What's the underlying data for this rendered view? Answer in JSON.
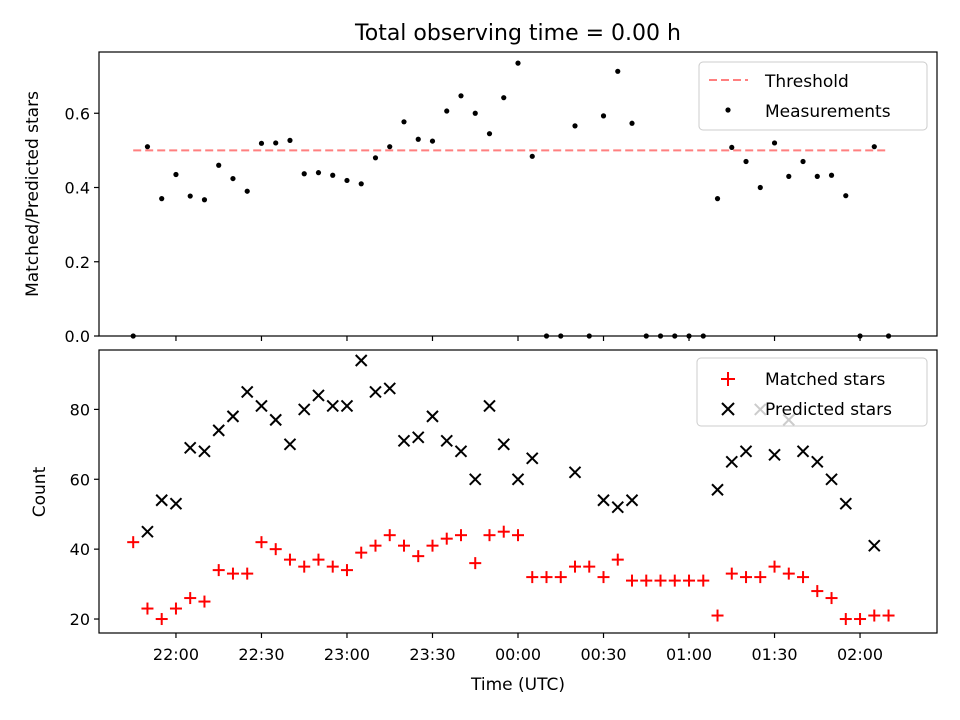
{
  "chart_data": [
    {
      "type": "scatter",
      "title": "Total observing time = 0.00 h",
      "xlabel": "",
      "ylabel": "Matched/Predicted stars",
      "ylim": [
        0,
        0.765
      ],
      "yticks": [
        0.0,
        0.2,
        0.4,
        0.6
      ],
      "ytick_labels": [
        "0.0",
        "0.2",
        "0.4",
        "0.6"
      ],
      "grid": false,
      "legend_position": "top-right",
      "threshold": {
        "name": "Threshold",
        "value": 0.5,
        "color": "#ff7f7f",
        "style": "dashed",
        "x_range": [
          "21:45",
          "02:10"
        ]
      },
      "series": [
        {
          "name": "Measurements",
          "color": "#000000",
          "marker": "dot",
          "points": [
            [
              "21:45",
              0.0
            ],
            [
              "21:50",
              0.51
            ],
            [
              "21:55",
              0.37
            ],
            [
              "22:00",
              0.435
            ],
            [
              "22:05",
              0.377
            ],
            [
              "22:10",
              0.367
            ],
            [
              "22:15",
              0.46
            ],
            [
              "22:20",
              0.424
            ],
            [
              "22:25",
              0.39
            ],
            [
              "22:30",
              0.519
            ],
            [
              "22:35",
              0.52
            ],
            [
              "22:40",
              0.527
            ],
            [
              "22:45",
              0.437
            ],
            [
              "22:50",
              0.44
            ],
            [
              "22:55",
              0.433
            ],
            [
              "23:00",
              0.419
            ],
            [
              "23:05",
              0.41
            ],
            [
              "23:10",
              0.48
            ],
            [
              "23:15",
              0.51
            ],
            [
              "23:20",
              0.577
            ],
            [
              "23:25",
              0.53
            ],
            [
              "23:30",
              0.525
            ],
            [
              "23:35",
              0.606
            ],
            [
              "23:40",
              0.647
            ],
            [
              "23:45",
              0.6
            ],
            [
              "23:50",
              0.545
            ],
            [
              "23:55",
              0.642
            ],
            [
              "00:00",
              0.735
            ],
            [
              "00:05",
              0.484
            ],
            [
              "00:10",
              0.0
            ],
            [
              "00:15",
              0.0
            ],
            [
              "00:20",
              0.566
            ],
            [
              "00:25",
              0.0
            ],
            [
              "00:30",
              0.593
            ],
            [
              "00:35",
              0.713
            ],
            [
              "00:40",
              0.573
            ],
            [
              "00:45",
              0.0
            ],
            [
              "00:50",
              0.0
            ],
            [
              "00:55",
              0.0
            ],
            [
              "01:00",
              0.0
            ],
            [
              "01:05",
              0.0
            ],
            [
              "01:10",
              0.37
            ],
            [
              "01:15",
              0.508
            ],
            [
              "01:20",
              0.47
            ],
            [
              "01:25",
              0.4
            ],
            [
              "01:30",
              0.52
            ],
            [
              "01:35",
              0.43
            ],
            [
              "01:40",
              0.47
            ],
            [
              "01:45",
              0.43
            ],
            [
              "01:50",
              0.433
            ],
            [
              "01:55",
              0.378
            ],
            [
              "02:00",
              0.0
            ],
            [
              "02:05",
              0.51
            ],
            [
              "02:10",
              0.0
            ]
          ]
        }
      ]
    },
    {
      "type": "scatter",
      "title": "",
      "xlabel": "Time (UTC)",
      "ylabel": "Count",
      "ylim": [
        16,
        97
      ],
      "yticks": [
        20,
        40,
        60,
        80
      ],
      "ytick_labels": [
        "20",
        "40",
        "60",
        "80"
      ],
      "xlim": [
        "21:33",
        "02:27"
      ],
      "xticks": [
        "22:00",
        "22:30",
        "23:00",
        "23:30",
        "00:00",
        "00:30",
        "01:00",
        "01:30",
        "02:00"
      ],
      "xtick_labels": [
        "22:00",
        "22:30",
        "23:00",
        "23:30",
        "00:00",
        "00:30",
        "01:00",
        "01:30",
        "02:00"
      ],
      "grid": false,
      "legend_position": "top-right",
      "series": [
        {
          "name": "Matched stars",
          "color": "#ff0000",
          "marker": "plus",
          "points": [
            [
              "21:45",
              42
            ],
            [
              "21:50",
              23
            ],
            [
              "21:55",
              20
            ],
            [
              "22:00",
              23
            ],
            [
              "22:05",
              26
            ],
            [
              "22:10",
              25
            ],
            [
              "22:15",
              34
            ],
            [
              "22:20",
              33
            ],
            [
              "22:25",
              33
            ],
            [
              "22:30",
              42
            ],
            [
              "22:35",
              40
            ],
            [
              "22:40",
              37
            ],
            [
              "22:45",
              35
            ],
            [
              "22:50",
              37
            ],
            [
              "22:55",
              35
            ],
            [
              "23:00",
              34
            ],
            [
              "23:05",
              39
            ],
            [
              "23:10",
              41
            ],
            [
              "23:15",
              44
            ],
            [
              "23:20",
              41
            ],
            [
              "23:25",
              38
            ],
            [
              "23:30",
              41
            ],
            [
              "23:35",
              43
            ],
            [
              "23:40",
              44
            ],
            [
              "23:45",
              36
            ],
            [
              "23:50",
              44
            ],
            [
              "23:55",
              45
            ],
            [
              "00:00",
              44
            ],
            [
              "00:05",
              32
            ],
            [
              "00:10",
              32
            ],
            [
              "00:15",
              32
            ],
            [
              "00:20",
              35
            ],
            [
              "00:25",
              35
            ],
            [
              "00:30",
              32
            ],
            [
              "00:35",
              37
            ],
            [
              "00:40",
              31
            ],
            [
              "00:45",
              31
            ],
            [
              "00:50",
              31
            ],
            [
              "00:55",
              31
            ],
            [
              "01:00",
              31
            ],
            [
              "01:05",
              31
            ],
            [
              "01:10",
              21
            ],
            [
              "01:15",
              33
            ],
            [
              "01:20",
              32
            ],
            [
              "01:25",
              32
            ],
            [
              "01:30",
              35
            ],
            [
              "01:35",
              33
            ],
            [
              "01:40",
              32
            ],
            [
              "01:45",
              28
            ],
            [
              "01:50",
              26
            ],
            [
              "01:55",
              20
            ],
            [
              "02:00",
              20
            ],
            [
              "02:05",
              21
            ],
            [
              "02:10",
              21
            ]
          ]
        },
        {
          "name": "Predicted stars",
          "color": "#000000",
          "marker": "x",
          "points": [
            [
              "21:50",
              45
            ],
            [
              "21:55",
              54
            ],
            [
              "22:00",
              53
            ],
            [
              "22:05",
              69
            ],
            [
              "22:10",
              68
            ],
            [
              "22:15",
              74
            ],
            [
              "22:20",
              78
            ],
            [
              "22:25",
              85
            ],
            [
              "22:30",
              81
            ],
            [
              "22:35",
              77
            ],
            [
              "22:40",
              70
            ],
            [
              "22:45",
              80
            ],
            [
              "22:50",
              84
            ],
            [
              "22:55",
              81
            ],
            [
              "23:00",
              81
            ],
            [
              "23:05",
              94
            ],
            [
              "23:10",
              85
            ],
            [
              "23:15",
              86
            ],
            [
              "23:20",
              71
            ],
            [
              "23:25",
              72
            ],
            [
              "23:30",
              78
            ],
            [
              "23:35",
              71
            ],
            [
              "23:40",
              68
            ],
            [
              "23:45",
              60
            ],
            [
              "23:50",
              81
            ],
            [
              "23:55",
              70
            ],
            [
              "00:00",
              60
            ],
            [
              "00:05",
              66
            ],
            [
              "00:20",
              62
            ],
            [
              "00:30",
              54
            ],
            [
              "00:35",
              52
            ],
            [
              "00:40",
              54
            ],
            [
              "01:10",
              57
            ],
            [
              "01:15",
              65
            ],
            [
              "01:20",
              68
            ],
            [
              "01:25",
              80
            ],
            [
              "01:30",
              67
            ],
            [
              "01:35",
              77
            ],
            [
              "01:40",
              68
            ],
            [
              "01:45",
              65
            ],
            [
              "01:50",
              60
            ],
            [
              "01:55",
              53
            ],
            [
              "02:05",
              41
            ]
          ]
        }
      ]
    }
  ]
}
